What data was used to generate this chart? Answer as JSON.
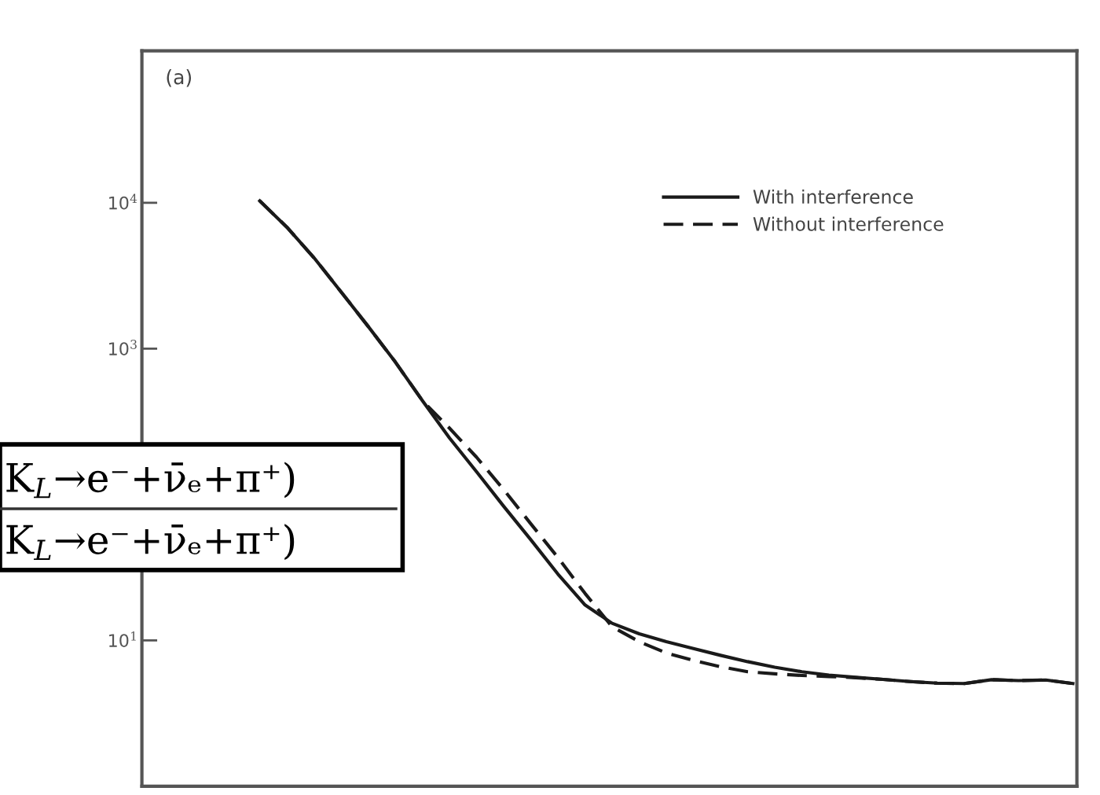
{
  "chart_data": {
    "type": "line",
    "categories": [
      null,
      null,
      null,
      null,
      null,
      null,
      null,
      null,
      null,
      null,
      null,
      null,
      null,
      null,
      null,
      null,
      null,
      null,
      null,
      null,
      null,
      null,
      null,
      null,
      null,
      null,
      null,
      null,
      null,
      null,
      null
    ],
    "series": [
      {
        "name": "With interference",
        "color": "#1a1a1a",
        "line_style": "solid",
        "values": [
          10300,
          6800,
          4200,
          2450,
          1420,
          810,
          440,
          244,
          143,
          83,
          49,
          28.5,
          17.5,
          13.1,
          11.1,
          9.8,
          8.8,
          7.9,
          7.15,
          6.55,
          6.1,
          5.78,
          5.58,
          5.4,
          5.22,
          5.09,
          5.06,
          5.38,
          5.3,
          5.35,
          5.06
        ]
      },
      {
        "name": "Without interference",
        "color": "#1a1a1a",
        "line_style": "dashed",
        "values": [
          10300,
          6800,
          4200,
          2450,
          1420,
          810,
          440,
          285,
          180,
          108,
          63,
          37,
          21,
          12.4,
          9.8,
          8.2,
          7.3,
          6.6,
          6.1,
          5.9,
          5.75,
          5.65,
          5.55,
          5.4,
          5.22,
          5.09,
          5.06,
          5.38,
          5.3,
          5.35,
          5.06
        ]
      }
    ],
    "log": "y",
    "ylim": [
      1,
      110000
    ],
    "yticks": [
      {
        "value": 10,
        "label": "10$^{1}$"
      },
      {
        "value": 1000,
        "label": "10$^{3}$"
      },
      {
        "value": 10000,
        "label": "10$^{4}$"
      }
    ],
    "tick_labels": "y",
    "grid": false,
    "legend": "top right",
    "marker": "none",
    "annotations": [
      "(a)",
      "K$_{L}$→e⁻+ν̄ₑ+π⁺)",
      "K$_{L}$→e⁻+ν̄ₑ+π⁺)"
    ]
  }
}
